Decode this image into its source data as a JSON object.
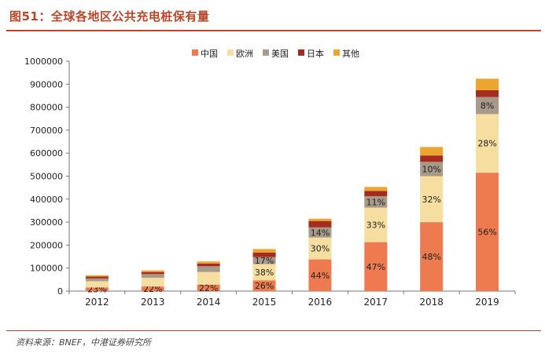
{
  "header": {
    "title": "图51：全球各地区公共充电桩保有量"
  },
  "footer": {
    "source": "资料来源：BNEF，中港证券研究所"
  },
  "chart_data": {
    "type": "bar",
    "stacked": true,
    "title": "",
    "xlabel": "",
    "ylabel": "",
    "categories": [
      "2012",
      "2013",
      "2014",
      "2015",
      "2016",
      "2017",
      "2018",
      "2019"
    ],
    "ylim": [
      0,
      1000000
    ],
    "yticks": [
      0,
      100000,
      200000,
      300000,
      400000,
      500000,
      600000,
      700000,
      800000,
      900000,
      1000000
    ],
    "ytick_labels": [
      "0",
      "100000",
      "200000",
      "300000",
      "400000",
      "500000",
      "600000",
      "700000",
      "800000",
      "900000",
      "1000000"
    ],
    "legend_position": "top",
    "grid": false,
    "series": [
      {
        "name": "中国",
        "color": "#ee7b4f",
        "values": [
          16000,
          20000,
          28000,
          47000,
          138000,
          213000,
          300000,
          515000
        ],
        "labels": [
          "23%",
          "22%",
          "22%",
          "26%",
          "44%",
          "47%",
          "48%",
          "56%"
        ]
      },
      {
        "name": "欧洲",
        "color": "#f6dea1",
        "values": [
          27000,
          38000,
          55000,
          70000,
          95000,
          150000,
          200000,
          255000
        ],
        "labels": [
          "",
          "",
          "",
          "38%",
          "30%",
          "33%",
          "32%",
          "28%"
        ]
      },
      {
        "name": "美国",
        "color": "#a89a8b",
        "values": [
          12000,
          16000,
          25000,
          31000,
          44000,
          50000,
          62000,
          74000
        ],
        "labels": [
          "",
          "",
          "",
          "17%",
          "14%",
          "11%",
          "10%",
          "8%"
        ]
      },
      {
        "name": "日本",
        "color": "#a52d20",
        "values": [
          8000,
          9000,
          12000,
          20000,
          28000,
          23000,
          28000,
          30000
        ],
        "labels": [
          "",
          "",
          "",
          "",
          "",
          "",
          "",
          ""
        ]
      },
      {
        "name": "其他",
        "color": "#eda532",
        "values": [
          6000,
          7000,
          9000,
          15000,
          10000,
          17000,
          37000,
          50000
        ],
        "labels": [
          "",
          "",
          "",
          "",
          "",
          "",
          "",
          ""
        ]
      }
    ]
  }
}
